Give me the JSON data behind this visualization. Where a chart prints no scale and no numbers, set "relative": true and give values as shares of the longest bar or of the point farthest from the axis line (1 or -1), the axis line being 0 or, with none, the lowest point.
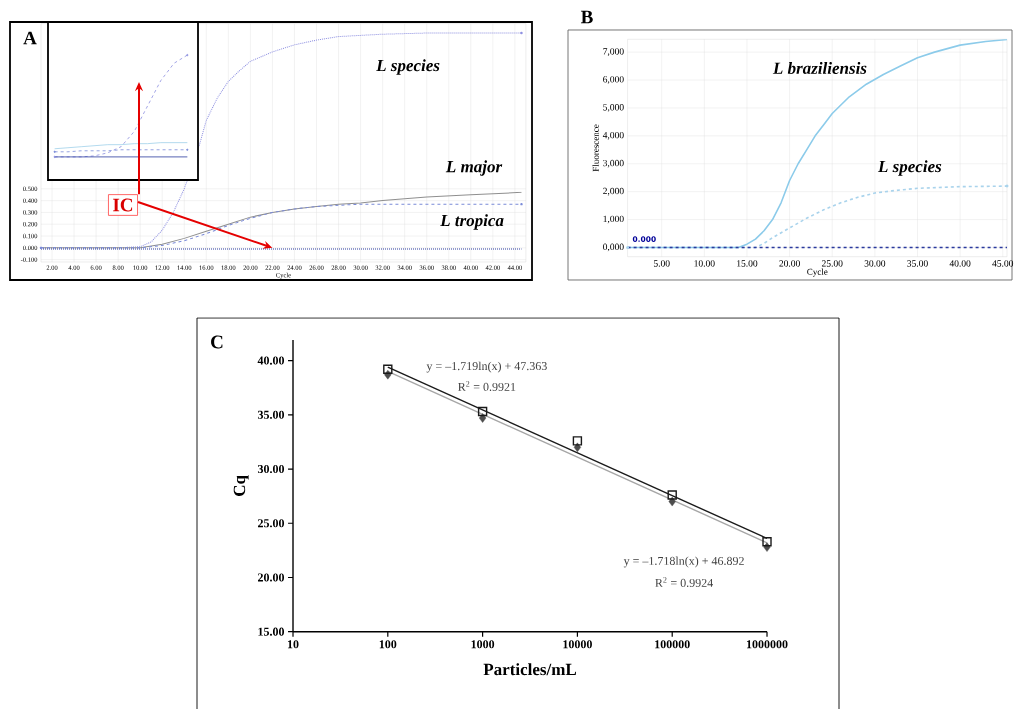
{
  "chart_data": [
    {
      "type": "line",
      "title": "A",
      "xlabel": "Cycle",
      "xlim": [
        1,
        45
      ],
      "ylim": [
        -0.12,
        1.9
      ],
      "grid": true,
      "annotations": [
        {
          "text": "IC",
          "x": 22,
          "y": 0
        }
      ],
      "xticks": [
        {
          "value": 2,
          "label": "2.00"
        },
        {
          "value": 4,
          "label": "4.00"
        },
        {
          "value": 6,
          "label": "6.00"
        },
        {
          "value": 8,
          "label": "8.00"
        },
        {
          "value": 10,
          "label": "10.00"
        },
        {
          "value": 12,
          "label": "12.00"
        },
        {
          "value": 14,
          "label": "14.00"
        },
        {
          "value": 16,
          "label": "16.00"
        },
        {
          "value": 18,
          "label": "18.00"
        },
        {
          "value": 20,
          "label": "20.00"
        },
        {
          "value": 22,
          "label": "22.00"
        },
        {
          "value": 24,
          "label": "24.00"
        },
        {
          "value": 26,
          "label": "26.00"
        },
        {
          "value": 28,
          "label": "28.00"
        },
        {
          "value": 30,
          "label": "30.00"
        },
        {
          "value": 32,
          "label": "32.00"
        },
        {
          "value": 34,
          "label": "34.00"
        },
        {
          "value": 36,
          "label": "36.00"
        },
        {
          "value": 38,
          "label": "38.00"
        },
        {
          "value": 40,
          "label": "40.00"
        },
        {
          "value": 42,
          "label": "42.00"
        },
        {
          "value": 44,
          "label": "44.00"
        }
      ],
      "yticks": [
        {
          "value": -0.1,
          "label": "-0.100"
        },
        {
          "value": 0,
          "label": "0.000"
        },
        {
          "value": 0.1,
          "label": "0.100"
        },
        {
          "value": 0.2,
          "label": "0.200"
        },
        {
          "value": 0.3,
          "label": "0.300"
        },
        {
          "value": 0.4,
          "label": "0.400"
        },
        {
          "value": 0.5,
          "label": "0.500"
        }
      ],
      "series": [
        {
          "name": "*L species*",
          "color": "#8c8ee0",
          "line_style": "dotted",
          "x": [
            1,
            8,
            10,
            11,
            12,
            13,
            14,
            15.4,
            16,
            17,
            18,
            19,
            20,
            22,
            24,
            26,
            28,
            32,
            36,
            44.6
          ],
          "values": [
            0,
            0,
            0.01,
            0.05,
            0.15,
            0.3,
            0.5,
            0.88,
            1.08,
            1.27,
            1.41,
            1.5,
            1.58,
            1.66,
            1.72,
            1.76,
            1.79,
            1.81,
            1.82,
            1.82
          ]
        },
        {
          "name": "*L major*",
          "color": "#8f8f8f",
          "line_style": "solid",
          "x": [
            1,
            9,
            10,
            12,
            14,
            16,
            17,
            18,
            20,
            22,
            24,
            26,
            28,
            30,
            32,
            36,
            40,
            44.6
          ],
          "values": [
            0,
            0,
            0,
            0.03,
            0.08,
            0.14,
            0.17,
            0.2,
            0.26,
            0.3,
            0.33,
            0.35,
            0.37,
            0.38,
            0.4,
            0.43,
            0.45,
            0.47
          ]
        },
        {
          "name": "*L tropica*",
          "color": "#7a8ad8",
          "line_style": "dashed",
          "x": [
            1,
            10,
            12,
            14,
            16,
            18,
            20,
            22,
            24,
            26,
            28,
            30,
            44.6
          ],
          "values": [
            0,
            0,
            0.02,
            0.06,
            0.12,
            0.19,
            0.25,
            0.3,
            0.33,
            0.35,
            0.36,
            0.37,
            0.37
          ]
        },
        {
          "color": "#2b3a9e",
          "line_style": "dotted",
          "x": [
            1,
            44.6
          ],
          "values": [
            -0.01,
            -0.01
          ]
        }
      ]
    },
    {
      "type": "line",
      "relative": true,
      "categories": [
        null,
        null,
        null,
        null,
        null,
        null,
        null,
        null,
        null,
        null,
        null
      ],
      "series": [
        {
          "color": "#8c8ee0",
          "line_style": "dashed",
          "values": [
            0,
            0,
            0,
            0.01,
            0.04,
            0.1,
            0.25,
            0.5,
            0.75,
            0.92,
            1.0
          ]
        },
        {
          "color": "#9fd0ea",
          "line_style": "solid",
          "values": [
            0.08,
            0.09,
            0.1,
            0.11,
            0.12,
            0.12,
            0.13,
            0.13,
            0.14,
            0.14,
            0.14
          ]
        },
        {
          "color": "#7a8ad8",
          "line_style": "dashed",
          "values": [
            0.05,
            0.05,
            0.06,
            0.06,
            0.06,
            0.07,
            0.07,
            0.07,
            0.07,
            0.07,
            0.07
          ]
        },
        {
          "color": "#2b3a9e",
          "line_style": "solid",
          "values": [
            0,
            0,
            0,
            0,
            0,
            0,
            0,
            0,
            0,
            0,
            0
          ]
        }
      ]
    },
    {
      "type": "line",
      "title": "B",
      "xlabel": "Cycle",
      "ylabel": "Fluorescence",
      "xlim": [
        1,
        45.5
      ],
      "ylim": [
        -330,
        7460
      ],
      "grid": true,
      "annotations": [
        "0.000"
      ],
      "xticks": [
        {
          "value": 5,
          "label": "5.00"
        },
        {
          "value": 10,
          "label": "10.00"
        },
        {
          "value": 15,
          "label": "15.00"
        },
        {
          "value": 20,
          "label": "20.00"
        },
        {
          "value": 25,
          "label": "25.00"
        },
        {
          "value": 30,
          "label": "30.00"
        },
        {
          "value": 35,
          "label": "35.00"
        },
        {
          "value": 40,
          "label": "40.00"
        },
        {
          "value": 45,
          "label": "45.00"
        }
      ],
      "yticks": [
        {
          "value": 0,
          "label": "0,000"
        },
        {
          "value": 1000,
          "label": "1,000"
        },
        {
          "value": 2000,
          "label": "2,000"
        },
        {
          "value": 3000,
          "label": "3,000"
        },
        {
          "value": 4000,
          "label": "4,000"
        },
        {
          "value": 5000,
          "label": "5,000"
        },
        {
          "value": 6000,
          "label": "6,000"
        },
        {
          "value": 7000,
          "label": "7,000"
        }
      ],
      "series": [
        {
          "name": "*L braziliensis*",
          "color": "#8ccbea",
          "line_style": "solid",
          "x": [
            1,
            14,
            15,
            16,
            17,
            18,
            19,
            20,
            21,
            22,
            23,
            24,
            25,
            27,
            29,
            31,
            33,
            35,
            37,
            40,
            43,
            45.5
          ],
          "values": [
            0,
            0,
            120,
            300,
            600,
            1000,
            1600,
            2400,
            3000,
            3500,
            4000,
            4400,
            4800,
            5400,
            5850,
            6200,
            6500,
            6800,
            7000,
            7250,
            7380,
            7450
          ]
        },
        {
          "name": "*L species*",
          "color": "#a9d3ec",
          "line_style": "dashed",
          "x": [
            1,
            16,
            17,
            18,
            20,
            22,
            24,
            26,
            28,
            30,
            32,
            35,
            40,
            45.5
          ],
          "values": [
            0,
            0,
            150,
            350,
            700,
            1050,
            1350,
            1600,
            1800,
            1950,
            2030,
            2120,
            2180,
            2200
          ]
        },
        {
          "color": "#2b3a9e",
          "line_style": "dashed",
          "x": [
            1,
            45.5
          ],
          "values": [
            0,
            0
          ]
        }
      ]
    },
    {
      "type": "scatter",
      "title": "C",
      "xlabel": "Particles/mL",
      "ylabel": "Cq",
      "log": "x",
      "xlim": [
        10,
        1000000
      ],
      "ylim": [
        15,
        41.9
      ],
      "xticks": [
        10,
        100,
        1000,
        10000,
        100000,
        1000000
      ],
      "yticks": [
        {
          "value": 15,
          "label": "15.00"
        },
        {
          "value": 20,
          "label": "20.00"
        },
        {
          "value": 25,
          "label": "25.00"
        },
        {
          "value": 30,
          "label": "30.00"
        },
        {
          "value": 35,
          "label": "35.00"
        },
        {
          "value": 40,
          "label": "40.00"
        }
      ],
      "annotations": [
        "y = –1.719ln(x) + 47.363",
        "R$^{2}$ = 0.9921",
        "y = –1.718ln(x) + 46.892",
        "R$^{2}$ = 0.9924"
      ],
      "series": [
        {
          "type": "line",
          "color": "#a6a6a6",
          "x": [
            100,
            1000000
          ],
          "values": [
            39.0,
            23.2
          ]
        },
        {
          "type": "line",
          "color": "#1a1a1a",
          "x": [
            100,
            1000000
          ],
          "values": [
            39.4,
            23.6
          ]
        },
        {
          "color": "#4d4d4d",
          "marker": "diamond",
          "x": [
            100,
            1000,
            10000,
            100000,
            1000000
          ],
          "values": [
            38.7,
            34.7,
            32.0,
            27.0,
            22.8
          ]
        },
        {
          "color": "#1a1a1a",
          "marker": "square",
          "x": [
            100,
            1000,
            10000,
            100000,
            1000000
          ],
          "values": [
            39.2,
            35.3,
            32.6,
            27.6,
            23.3
          ]
        }
      ]
    }
  ]
}
